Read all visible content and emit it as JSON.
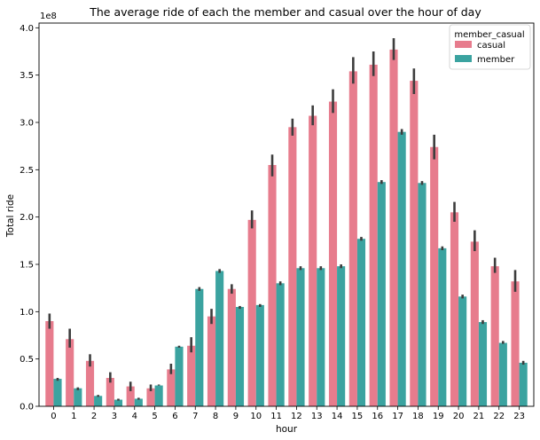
{
  "chart_data": {
    "type": "bar",
    "title": "The average ride of each the member and casual over the hour of day",
    "xlabel": "hour",
    "ylabel": "Total ride",
    "y_offset_label": "1e8",
    "ylim": [
      0,
      4.05
    ],
    "yticks": [
      "0.0",
      "0.5",
      "1.0",
      "1.5",
      "2.0",
      "2.5",
      "3.0",
      "3.5",
      "4.0"
    ],
    "categories": [
      "0",
      "1",
      "2",
      "3",
      "4",
      "5",
      "6",
      "7",
      "8",
      "9",
      "10",
      "11",
      "12",
      "13",
      "14",
      "15",
      "16",
      "17",
      "18",
      "19",
      "20",
      "21",
      "22",
      "23"
    ],
    "legend": {
      "title": "member_casual",
      "position": "top-right"
    },
    "series": [
      {
        "name": "casual",
        "color": "#e77c8d",
        "values": [
          0.9,
          0.71,
          0.48,
          0.3,
          0.21,
          0.19,
          0.39,
          0.64,
          0.95,
          1.24,
          1.97,
          2.55,
          2.95,
          3.07,
          3.22,
          3.54,
          3.61,
          3.77,
          3.44,
          2.74,
          2.05,
          1.74,
          1.48,
          1.32
        ],
        "err_low": [
          0.82,
          0.62,
          0.42,
          0.25,
          0.16,
          0.16,
          0.34,
          0.57,
          0.87,
          1.19,
          1.88,
          2.43,
          2.86,
          2.97,
          3.1,
          3.41,
          3.49,
          3.66,
          3.3,
          2.61,
          1.95,
          1.64,
          1.41,
          1.21
        ],
        "err_high": [
          0.98,
          0.82,
          0.55,
          0.36,
          0.26,
          0.23,
          0.45,
          0.73,
          1.03,
          1.29,
          2.07,
          2.66,
          3.04,
          3.18,
          3.35,
          3.69,
          3.75,
          3.89,
          3.57,
          2.87,
          2.16,
          1.86,
          1.57,
          1.44
        ]
      },
      {
        "name": "member",
        "color": "#3ba3a0",
        "values": [
          0.29,
          0.19,
          0.11,
          0.07,
          0.08,
          0.22,
          0.63,
          1.24,
          1.43,
          1.05,
          1.07,
          1.3,
          1.46,
          1.46,
          1.48,
          1.77,
          2.37,
          2.9,
          2.36,
          1.67,
          1.16,
          0.89,
          0.67,
          0.46
        ],
        "err_low": [
          0.27,
          0.17,
          0.1,
          0.06,
          0.07,
          0.22,
          0.62,
          1.22,
          1.41,
          1.03,
          1.05,
          1.28,
          1.44,
          1.44,
          1.46,
          1.75,
          2.35,
          2.87,
          2.34,
          1.65,
          1.14,
          0.87,
          0.66,
          0.44
        ],
        "err_high": [
          0.3,
          0.2,
          0.12,
          0.08,
          0.09,
          0.23,
          0.64,
          1.26,
          1.45,
          1.06,
          1.08,
          1.32,
          1.48,
          1.48,
          1.5,
          1.79,
          2.39,
          2.93,
          2.38,
          1.69,
          1.18,
          0.91,
          0.69,
          0.48
        ]
      }
    ]
  }
}
